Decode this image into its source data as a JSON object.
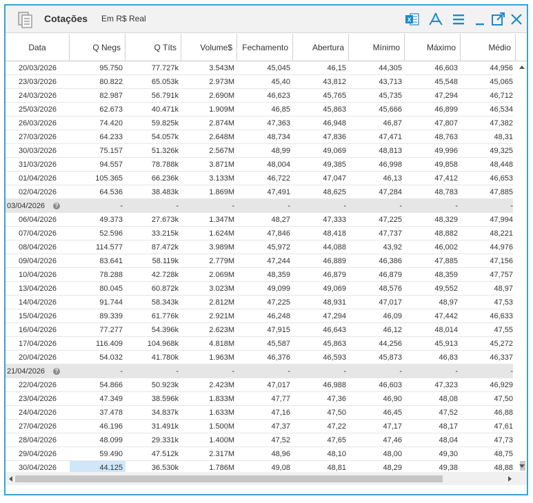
{
  "title": "Cotações",
  "subtitle": "Em R$ Real",
  "toolbar": {
    "icons": [
      "excel-icon",
      "pdf-icon",
      "menu-icon",
      "minimize-icon",
      "popout-icon",
      "close-icon"
    ],
    "accent_color": "#3aa0d8"
  },
  "table": {
    "columns": [
      "Data",
      "Q Negs",
      "Q Títs",
      "Volume$",
      "Fechamento",
      "Abertura",
      "Mínimo",
      "Máximo",
      "Médio"
    ],
    "rows": [
      [
        "20/03/2026",
        "95.750",
        "77.727k",
        "3.543M",
        "45,045",
        "46,15",
        "44,305",
        "46,603",
        "44,956"
      ],
      [
        "23/03/2026",
        "80.822",
        "65.053k",
        "2.973M",
        "45,40",
        "43,812",
        "43,713",
        "45,548",
        "45,065"
      ],
      [
        "24/03/2026",
        "82.987",
        "56.791k",
        "2.690M",
        "46,623",
        "45,765",
        "45,735",
        "47,294",
        "46,712"
      ],
      [
        "25/03/2026",
        "62.673",
        "40.471k",
        "1.909M",
        "46,85",
        "45,863",
        "45,666",
        "46,899",
        "46,534"
      ],
      [
        "26/03/2026",
        "74.420",
        "59.825k",
        "2.874M",
        "47,363",
        "46,948",
        "46,87",
        "47,807",
        "47,382"
      ],
      [
        "27/03/2026",
        "64.233",
        "54.057k",
        "2.648M",
        "48,734",
        "47,836",
        "47,471",
        "48,763",
        "48,31"
      ],
      [
        "30/03/2026",
        "75.157",
        "51.326k",
        "2.567M",
        "48,99",
        "49,069",
        "48,813",
        "49,996",
        "49,325"
      ],
      [
        "31/03/2026",
        "94.557",
        "78.788k",
        "3.871M",
        "48,004",
        "49,385",
        "46,998",
        "49,858",
        "48,448"
      ],
      [
        "01/04/2026",
        "105.365",
        "66.236k",
        "3.133M",
        "46,722",
        "47,047",
        "46,13",
        "47,412",
        "46,653"
      ],
      [
        "02/04/2026",
        "64.536",
        "38.483k",
        "1.869M",
        "47,491",
        "48,625",
        "47,284",
        "48,783",
        "47,885"
      ],
      [
        "03/04/2026",
        "-",
        "-",
        "-",
        "-",
        "-",
        "-",
        "-",
        "-"
      ],
      [
        "06/04/2026",
        "49.373",
        "27.673k",
        "1.347M",
        "48,27",
        "47,333",
        "47,225",
        "48,329",
        "47,994"
      ],
      [
        "07/04/2026",
        "52.596",
        "33.215k",
        "1.624M",
        "47,846",
        "48,418",
        "47,737",
        "48,882",
        "48,221"
      ],
      [
        "08/04/2026",
        "114.577",
        "87.472k",
        "3.989M",
        "45,972",
        "44,088",
        "43,92",
        "46,002",
        "44,976"
      ],
      [
        "09/04/2026",
        "83.641",
        "58.119k",
        "2.779M",
        "47,244",
        "46,889",
        "46,386",
        "47,885",
        "47,156"
      ],
      [
        "10/04/2026",
        "78.288",
        "42.728k",
        "2.069M",
        "48,359",
        "46,879",
        "46,879",
        "48,359",
        "47,757"
      ],
      [
        "13/04/2026",
        "80.045",
        "60.872k",
        "3.023M",
        "49,099",
        "49,069",
        "48,576",
        "49,552",
        "48,97"
      ],
      [
        "14/04/2026",
        "91.744",
        "58.343k",
        "2.812M",
        "47,225",
        "48,931",
        "47,017",
        "48,97",
        "47,53"
      ],
      [
        "15/04/2026",
        "89.339",
        "61.776k",
        "2.921M",
        "46,248",
        "47,294",
        "46,09",
        "47,442",
        "46,633"
      ],
      [
        "16/04/2026",
        "77.277",
        "54.396k",
        "2.623M",
        "47,915",
        "46,643",
        "46,12",
        "48,014",
        "47,55"
      ],
      [
        "17/04/2026",
        "116.409",
        "104.968k",
        "4.818M",
        "45,587",
        "45,863",
        "44,256",
        "45,913",
        "45,272"
      ],
      [
        "20/04/2026",
        "54.032",
        "41.780k",
        "1.963M",
        "46,376",
        "46,593",
        "45,873",
        "46,83",
        "46,337"
      ],
      [
        "21/04/2026",
        "-",
        "-",
        "-",
        "-",
        "-",
        "-",
        "-",
        "-"
      ],
      [
        "22/04/2026",
        "54.866",
        "50.923k",
        "2.423M",
        "47,017",
        "46,988",
        "46,603",
        "47,323",
        "46,929"
      ],
      [
        "23/04/2026",
        "47.349",
        "38.596k",
        "1.833M",
        "47,77",
        "47,36",
        "46,90",
        "48,08",
        "47,50"
      ],
      [
        "24/04/2026",
        "37.478",
        "34.837k",
        "1.633M",
        "47,16",
        "47,50",
        "46,45",
        "47,52",
        "46,88"
      ],
      [
        "27/04/2026",
        "46.196",
        "31.491k",
        "1.500M",
        "47,37",
        "47,22",
        "47,17",
        "48,17",
        "47,61"
      ],
      [
        "28/04/2026",
        "48.099",
        "29.331k",
        "1.400M",
        "47,52",
        "47,65",
        "47,46",
        "48,04",
        "47,73"
      ],
      [
        "29/04/2026",
        "59.490",
        "47.512k",
        "2.317M",
        "48,96",
        "48,10",
        "48,00",
        "49,30",
        "48,75"
      ],
      [
        "30/04/2026",
        "44.125",
        "36.530k",
        "1.786M",
        "49,08",
        "48,81",
        "48,29",
        "49,38",
        "48,88"
      ]
    ],
    "holiday_rows": [
      10,
      22
    ],
    "holiday_marker": "?",
    "selected_cell": {
      "row": 29,
      "col": 1
    }
  }
}
